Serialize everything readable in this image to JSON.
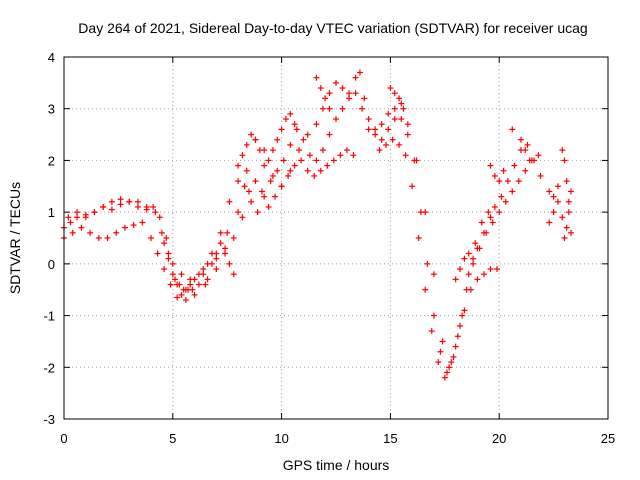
{
  "chart_data": {
    "type": "scatter",
    "title": "Day 264 of 2021, Sidereal Day-to-day VTEC variation (SDTVAR) for receiver ucag",
    "xlabel": "GPS time / hours",
    "ylabel": "SDTVAR / TECUs",
    "xlim": [
      0,
      25
    ],
    "ylim": [
      -3,
      4
    ],
    "xticks": [
      0,
      5,
      10,
      15,
      20,
      25
    ],
    "yticks": [
      -3,
      -2,
      -1,
      0,
      1,
      2,
      3,
      4
    ],
    "grid": true,
    "marker": "+",
    "color": "#ff0000",
    "series": [
      {
        "x": [
          0.0,
          0.3,
          0.6,
          1.0,
          1.4,
          1.8,
          2.2,
          2.6,
          3.0,
          3.4,
          3.8,
          4.2,
          4.5,
          4.8,
          5.1,
          5.4,
          5.7,
          6.0,
          6.4,
          6.8,
          7.2,
          7.6,
          8.0,
          8.3,
          8.6,
          8.9,
          9.2,
          9.5,
          9.8,
          10.1,
          10.4,
          10.7,
          11.0,
          11.3,
          11.6,
          11.9,
          12.2,
          12.5,
          12.8,
          13.1,
          13.4,
          13.7,
          14.0,
          14.3,
          14.6,
          14.9,
          15.2,
          15.5,
          15.8,
          16.1,
          16.4,
          16.7,
          17.0,
          17.3,
          17.6,
          17.9,
          18.2,
          18.5,
          18.8,
          19.1,
          19.4,
          19.7,
          20.0,
          20.3,
          20.6,
          20.9,
          21.2,
          21.5,
          21.8
        ],
        "y": [
          0.7,
          0.8,
          0.9,
          0.9,
          1.0,
          1.1,
          1.05,
          1.15,
          1.2,
          1.2,
          1.1,
          1.0,
          0.6,
          0.2,
          -0.3,
          -0.6,
          -0.5,
          -0.3,
          -0.2,
          0.2,
          0.6,
          1.2,
          1.6,
          1.5,
          1.2,
          1.0,
          1.3,
          1.6,
          1.8,
          2.0,
          2.3,
          2.6,
          2.4,
          2.1,
          2.0,
          2.2,
          2.5,
          2.8,
          3.0,
          3.2,
          3.3,
          3.0,
          2.8,
          2.6,
          2.7,
          2.9,
          3.0,
          2.8,
          2.5,
          2.0,
          1.0,
          0.0,
          -1.0,
          -1.7,
          -2.1,
          -1.8,
          -1.2,
          -0.5,
          0.0,
          0.3,
          0.6,
          0.8,
          1.0,
          1.2,
          1.4,
          1.6,
          1.8,
          2.0,
          2.1
        ]
      },
      {
        "x": [
          0.0,
          0.4,
          0.8,
          1.2,
          1.6,
          2.0,
          2.4,
          2.8,
          3.2,
          3.6,
          4.0,
          4.3,
          4.6,
          4.9,
          5.2,
          5.5,
          5.8,
          6.2,
          6.6,
          7.0,
          7.4,
          7.8,
          8.2,
          8.5,
          8.8,
          9.1,
          9.4,
          9.7,
          10.0,
          10.3,
          10.6,
          10.9,
          11.2,
          11.5,
          11.8,
          12.1,
          12.4,
          12.7,
          13.0,
          13.3,
          14.5,
          14.8,
          15.1,
          15.4,
          15.7,
          16.0,
          16.3,
          16.6,
          16.9,
          17.2,
          17.5,
          17.8,
          18.1,
          18.4,
          18.7,
          19.0,
          19.3,
          19.6,
          19.9
        ],
        "y": [
          0.5,
          0.6,
          0.7,
          0.6,
          0.5,
          0.5,
          0.6,
          0.7,
          0.75,
          0.8,
          0.5,
          0.2,
          -0.1,
          -0.4,
          -0.65,
          -0.5,
          -0.4,
          -0.2,
          0.0,
          -0.1,
          0.2,
          0.5,
          0.9,
          1.4,
          1.6,
          1.4,
          1.1,
          1.3,
          1.5,
          1.7,
          1.9,
          2.0,
          1.8,
          1.7,
          1.8,
          1.9,
          2.0,
          2.1,
          2.2,
          2.1,
          2.2,
          2.3,
          2.4,
          2.3,
          2.1,
          1.5,
          0.5,
          -0.5,
          -1.3,
          -1.9,
          -2.2,
          -1.9,
          -1.4,
          -0.9,
          -0.5,
          -0.3,
          -0.2,
          -0.1,
          -0.1
        ]
      },
      {
        "x": [
          0.2,
          0.6,
          1.0,
          1.4,
          1.8,
          2.2,
          2.6,
          3.0,
          3.4,
          3.8,
          4.1,
          4.4,
          4.7,
          5.0,
          5.3,
          5.6,
          5.9,
          6.5,
          7.0,
          7.5,
          8.0,
          8.4,
          8.8,
          9.2,
          9.6,
          10.0,
          10.4,
          10.8,
          11.2,
          11.6,
          11.9,
          12.2,
          12.5,
          12.8,
          13.1,
          14.0,
          14.3,
          14.6,
          14.9,
          15.2,
          15.5,
          15.8,
          16.2,
          16.6,
          17.0,
          17.4,
          17.7,
          18.0,
          18.3,
          18.6,
          18.9,
          19.2,
          19.5,
          19.8,
          20.1,
          20.4,
          20.7,
          21.0,
          21.3,
          21.6,
          21.9
        ],
        "y": [
          0.9,
          1.0,
          0.95,
          1.0,
          1.1,
          1.2,
          1.25,
          1.2,
          1.1,
          1.05,
          1.1,
          0.9,
          0.5,
          0.0,
          -0.4,
          -0.7,
          -0.5,
          -0.4,
          0.1,
          0.6,
          1.0,
          1.8,
          2.4,
          2.2,
          1.7,
          1.5,
          1.8,
          2.2,
          2.5,
          2.7,
          3.0,
          3.3,
          3.5,
          3.4,
          3.3,
          2.6,
          2.5,
          2.4,
          2.6,
          2.8,
          3.1,
          2.7,
          2.0,
          1.0,
          -0.2,
          -1.5,
          -2.0,
          -1.6,
          -1.0,
          -0.2,
          0.4,
          0.8,
          1.0,
          1.1,
          1.3,
          1.6,
          1.9,
          2.2,
          2.3,
          2.0,
          1.7
        ]
      },
      {
        "x": [
          8.0,
          8.2,
          8.4,
          8.6,
          8.8,
          9.0,
          9.2,
          9.4,
          9.6,
          9.8,
          10.0,
          10.2,
          10.4,
          10.6,
          11.6,
          11.8,
          12.0,
          12.2,
          13.4,
          13.6,
          13.8,
          15.0,
          15.2,
          15.4,
          15.6,
          19.6,
          19.8,
          20.0,
          20.2,
          20.6,
          21.0,
          21.2,
          21.4,
          22.3,
          22.5,
          22.7,
          22.9,
          23.0,
          23.1,
          23.2,
          23.3
        ],
        "y": [
          1.9,
          2.1,
          2.3,
          2.5,
          2.4,
          2.2,
          1.9,
          2.0,
          2.2,
          2.4,
          2.6,
          2.8,
          2.9,
          2.7,
          3.6,
          3.4,
          3.2,
          3.0,
          3.6,
          3.7,
          3.2,
          3.4,
          3.3,
          3.2,
          3.0,
          1.9,
          1.7,
          1.6,
          1.8,
          2.6,
          2.4,
          2.2,
          2.0,
          1.4,
          1.3,
          1.5,
          2.2,
          2.0,
          1.6,
          1.2,
          0.6
        ]
      },
      {
        "x": [
          22.3,
          22.5,
          22.7,
          22.9,
          23.0,
          23.1,
          23.2,
          23.3,
          18.0,
          18.2,
          18.4,
          18.6,
          18.8,
          19.0,
          19.3,
          19.6,
          4.6,
          4.8,
          5.0,
          5.2,
          5.4,
          5.6,
          5.8,
          6.0,
          6.2,
          6.4,
          6.6,
          6.8,
          7.0,
          7.2,
          7.4,
          7.6,
          7.8
        ],
        "y": [
          0.8,
          1.0,
          1.2,
          0.9,
          0.5,
          0.7,
          1.0,
          1.4,
          -0.3,
          -0.1,
          0.1,
          0.2,
          0.1,
          0.3,
          0.6,
          0.9,
          0.4,
          0.1,
          -0.2,
          -0.4,
          -0.2,
          -0.5,
          -0.3,
          -0.6,
          -0.4,
          -0.1,
          -0.3,
          0.0,
          0.2,
          0.4,
          0.3,
          0.0,
          -0.2
        ]
      }
    ]
  }
}
